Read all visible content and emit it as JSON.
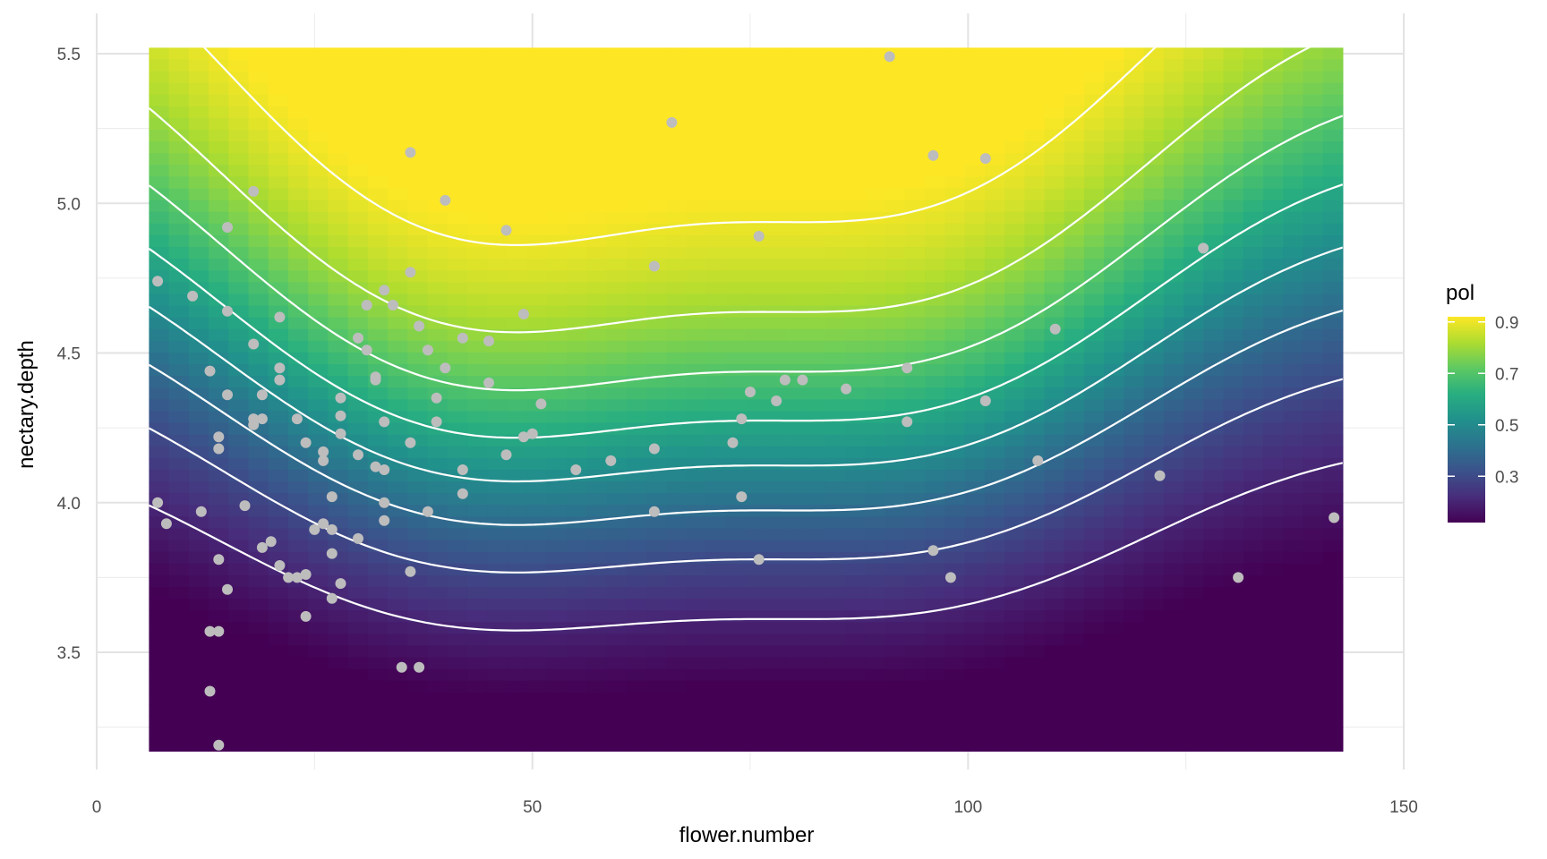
{
  "chart_data": {
    "type": "heatmap",
    "title": "",
    "xlabel": "flower.number",
    "ylabel": "nectary.depth",
    "xlim": [
      0,
      150
    ],
    "ylim": [
      3.13,
      5.59
    ],
    "x_ticks": [
      0,
      50,
      100,
      150
    ],
    "x_tick_labels": [
      "0",
      "50",
      "100",
      "150"
    ],
    "y_ticks": [
      3.5,
      4.0,
      4.5,
      5.0,
      5.5
    ],
    "y_tick_labels": [
      "3.5",
      "4.0",
      "4.5",
      "5.0",
      "5.5"
    ],
    "grid": true,
    "surface": {
      "x_range": [
        6,
        143
      ],
      "y_range": [
        3.17,
        5.52
      ],
      "description_model": "pol(x, y) predicted probability surface, peaks near x=42 and x=93",
      "contour_levels": [
        0.2,
        0.3,
        0.4,
        0.5,
        0.6,
        0.7,
        0.8,
        0.9
      ],
      "contour_color": "#ffffff"
    },
    "legend": {
      "title": "pol",
      "placement": "right",
      "min": 0.12,
      "max": 0.92,
      "ticks": [
        0.3,
        0.5,
        0.7,
        0.9
      ],
      "tick_labels": [
        "0.3",
        "0.5",
        "0.7",
        "0.9"
      ],
      "colormap": [
        "#440154",
        "#472d7b",
        "#3b528b",
        "#2c728e",
        "#21918c",
        "#28ae80",
        "#5ec962",
        "#addc30",
        "#fde725"
      ]
    },
    "points_color": "#bdbdbd",
    "points": [
      {
        "x": 7,
        "y": 4.74
      },
      {
        "x": 7,
        "y": 4.0
      },
      {
        "x": 8,
        "y": 3.93
      },
      {
        "x": 11,
        "y": 4.69
      },
      {
        "x": 12,
        "y": 3.97
      },
      {
        "x": 13,
        "y": 4.44
      },
      {
        "x": 13,
        "y": 3.57
      },
      {
        "x": 13,
        "y": 3.37
      },
      {
        "x": 14,
        "y": 4.22
      },
      {
        "x": 14,
        "y": 4.18
      },
      {
        "x": 14,
        "y": 3.81
      },
      {
        "x": 14,
        "y": 3.57
      },
      {
        "x": 14,
        "y": 3.19
      },
      {
        "x": 15,
        "y": 4.92
      },
      {
        "x": 15,
        "y": 4.64
      },
      {
        "x": 15,
        "y": 4.36
      },
      {
        "x": 15,
        "y": 3.71
      },
      {
        "x": 17,
        "y": 3.99
      },
      {
        "x": 18,
        "y": 5.04
      },
      {
        "x": 18,
        "y": 4.53
      },
      {
        "x": 18,
        "y": 4.28
      },
      {
        "x": 18,
        "y": 4.26
      },
      {
        "x": 19,
        "y": 4.36
      },
      {
        "x": 19,
        "y": 4.28
      },
      {
        "x": 19,
        "y": 3.85
      },
      {
        "x": 20,
        "y": 3.87
      },
      {
        "x": 21,
        "y": 4.62
      },
      {
        "x": 21,
        "y": 4.45
      },
      {
        "x": 21,
        "y": 4.41
      },
      {
        "x": 21,
        "y": 3.79
      },
      {
        "x": 22,
        "y": 3.75
      },
      {
        "x": 23,
        "y": 4.28
      },
      {
        "x": 23,
        "y": 3.75
      },
      {
        "x": 24,
        "y": 4.2
      },
      {
        "x": 24,
        "y": 3.76
      },
      {
        "x": 24,
        "y": 3.62
      },
      {
        "x": 25,
        "y": 3.91
      },
      {
        "x": 26,
        "y": 4.17
      },
      {
        "x": 26,
        "y": 4.14
      },
      {
        "x": 26,
        "y": 3.93
      },
      {
        "x": 27,
        "y": 4.02
      },
      {
        "x": 27,
        "y": 3.91
      },
      {
        "x": 27,
        "y": 3.83
      },
      {
        "x": 27,
        "y": 3.68
      },
      {
        "x": 28,
        "y": 4.35
      },
      {
        "x": 28,
        "y": 4.29
      },
      {
        "x": 28,
        "y": 4.23
      },
      {
        "x": 28,
        "y": 3.73
      },
      {
        "x": 30,
        "y": 4.55
      },
      {
        "x": 30,
        "y": 4.16
      },
      {
        "x": 30,
        "y": 3.88
      },
      {
        "x": 31,
        "y": 4.66
      },
      {
        "x": 31,
        "y": 4.51
      },
      {
        "x": 32,
        "y": 4.42
      },
      {
        "x": 32,
        "y": 4.41
      },
      {
        "x": 32,
        "y": 4.12
      },
      {
        "x": 33,
        "y": 4.71
      },
      {
        "x": 33,
        "y": 4.27
      },
      {
        "x": 33,
        "y": 4.11
      },
      {
        "x": 33,
        "y": 4.0
      },
      {
        "x": 33,
        "y": 3.94
      },
      {
        "x": 34,
        "y": 4.66
      },
      {
        "x": 35,
        "y": 3.45
      },
      {
        "x": 36,
        "y": 5.17
      },
      {
        "x": 36,
        "y": 4.77
      },
      {
        "x": 36,
        "y": 4.2
      },
      {
        "x": 36,
        "y": 3.77
      },
      {
        "x": 37,
        "y": 4.59
      },
      {
        "x": 37,
        "y": 3.45
      },
      {
        "x": 38,
        "y": 4.51
      },
      {
        "x": 38,
        "y": 3.97
      },
      {
        "x": 39,
        "y": 4.35
      },
      {
        "x": 39,
        "y": 4.27
      },
      {
        "x": 40,
        "y": 5.01
      },
      {
        "x": 40,
        "y": 4.45
      },
      {
        "x": 42,
        "y": 4.55
      },
      {
        "x": 42,
        "y": 4.11
      },
      {
        "x": 42,
        "y": 4.03
      },
      {
        "x": 45,
        "y": 4.54
      },
      {
        "x": 45,
        "y": 4.4
      },
      {
        "x": 47,
        "y": 4.91
      },
      {
        "x": 47,
        "y": 4.16
      },
      {
        "x": 49,
        "y": 4.63
      },
      {
        "x": 49,
        "y": 4.22
      },
      {
        "x": 50,
        "y": 4.23
      },
      {
        "x": 51,
        "y": 4.33
      },
      {
        "x": 55,
        "y": 4.11
      },
      {
        "x": 59,
        "y": 4.14
      },
      {
        "x": 64,
        "y": 4.79
      },
      {
        "x": 64,
        "y": 4.18
      },
      {
        "x": 64,
        "y": 3.97
      },
      {
        "x": 66,
        "y": 5.27
      },
      {
        "x": 73,
        "y": 4.2
      },
      {
        "x": 74,
        "y": 4.28
      },
      {
        "x": 74,
        "y": 4.02
      },
      {
        "x": 75,
        "y": 4.37
      },
      {
        "x": 76,
        "y": 4.89
      },
      {
        "x": 76,
        "y": 3.81
      },
      {
        "x": 78,
        "y": 4.34
      },
      {
        "x": 79,
        "y": 4.41
      },
      {
        "x": 81,
        "y": 4.41
      },
      {
        "x": 86,
        "y": 4.38
      },
      {
        "x": 91,
        "y": 5.49
      },
      {
        "x": 93,
        "y": 4.45
      },
      {
        "x": 93,
        "y": 4.27
      },
      {
        "x": 96,
        "y": 5.16
      },
      {
        "x": 96,
        "y": 3.84
      },
      {
        "x": 98,
        "y": 3.75
      },
      {
        "x": 102,
        "y": 5.15
      },
      {
        "x": 102,
        "y": 4.34
      },
      {
        "x": 108,
        "y": 4.14
      },
      {
        "x": 110,
        "y": 4.58
      },
      {
        "x": 122,
        "y": 4.09
      },
      {
        "x": 127,
        "y": 4.85
      },
      {
        "x": 131,
        "y": 3.75
      },
      {
        "x": 142,
        "y": 3.95
      }
    ]
  }
}
